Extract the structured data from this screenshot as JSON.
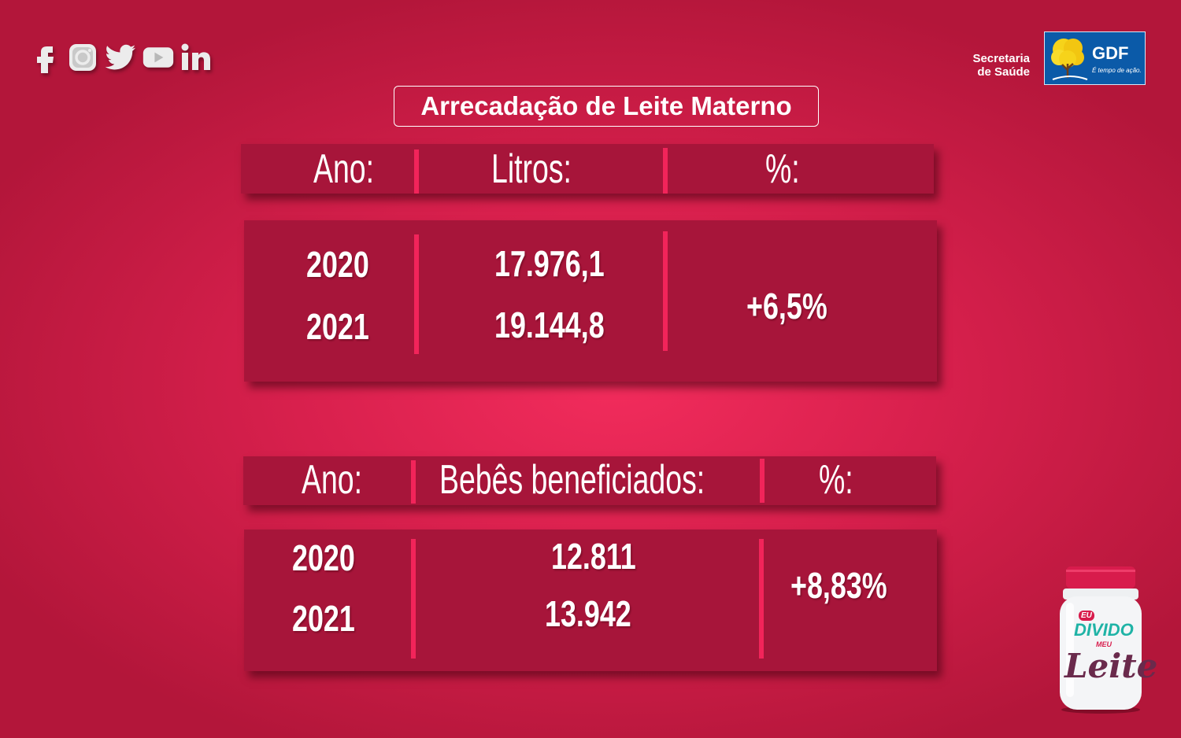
{
  "social": {
    "icons": [
      "facebook-icon",
      "instagram-icon",
      "twitter-icon",
      "youtube-icon",
      "linkedin-icon"
    ]
  },
  "header": {
    "secretaria_line1": "Secretaria",
    "secretaria_line2": "de Saúde",
    "gdf_logo": "GDF",
    "gdf_slogan": "É tempo de ação."
  },
  "title": "Arrecadação de Leite Materno",
  "table1": {
    "headers": {
      "ano": "Ano:",
      "litros": "Litros:",
      "percent": "%:"
    },
    "rows": [
      {
        "ano": "2020",
        "litros": "17.976,1"
      },
      {
        "ano": "2021",
        "litros": "19.144,8"
      }
    ],
    "percent": "+6,5%"
  },
  "table2": {
    "headers": {
      "ano": "Ano:",
      "bebes": "Bebês beneficiados:",
      "percent": "%:"
    },
    "rows": [
      {
        "ano": "2020",
        "bebes": "12.811"
      },
      {
        "ano": "2021",
        "bebes": "13.942"
      }
    ],
    "percent": "+8,83%"
  },
  "jar": {
    "line1": "EU",
    "line2": "DIVIDO",
    "line3": "MEU",
    "line4": "Leite"
  },
  "colors": {
    "panel": "#a7153a",
    "separator": "#f2245a",
    "background": "#d8204d"
  }
}
